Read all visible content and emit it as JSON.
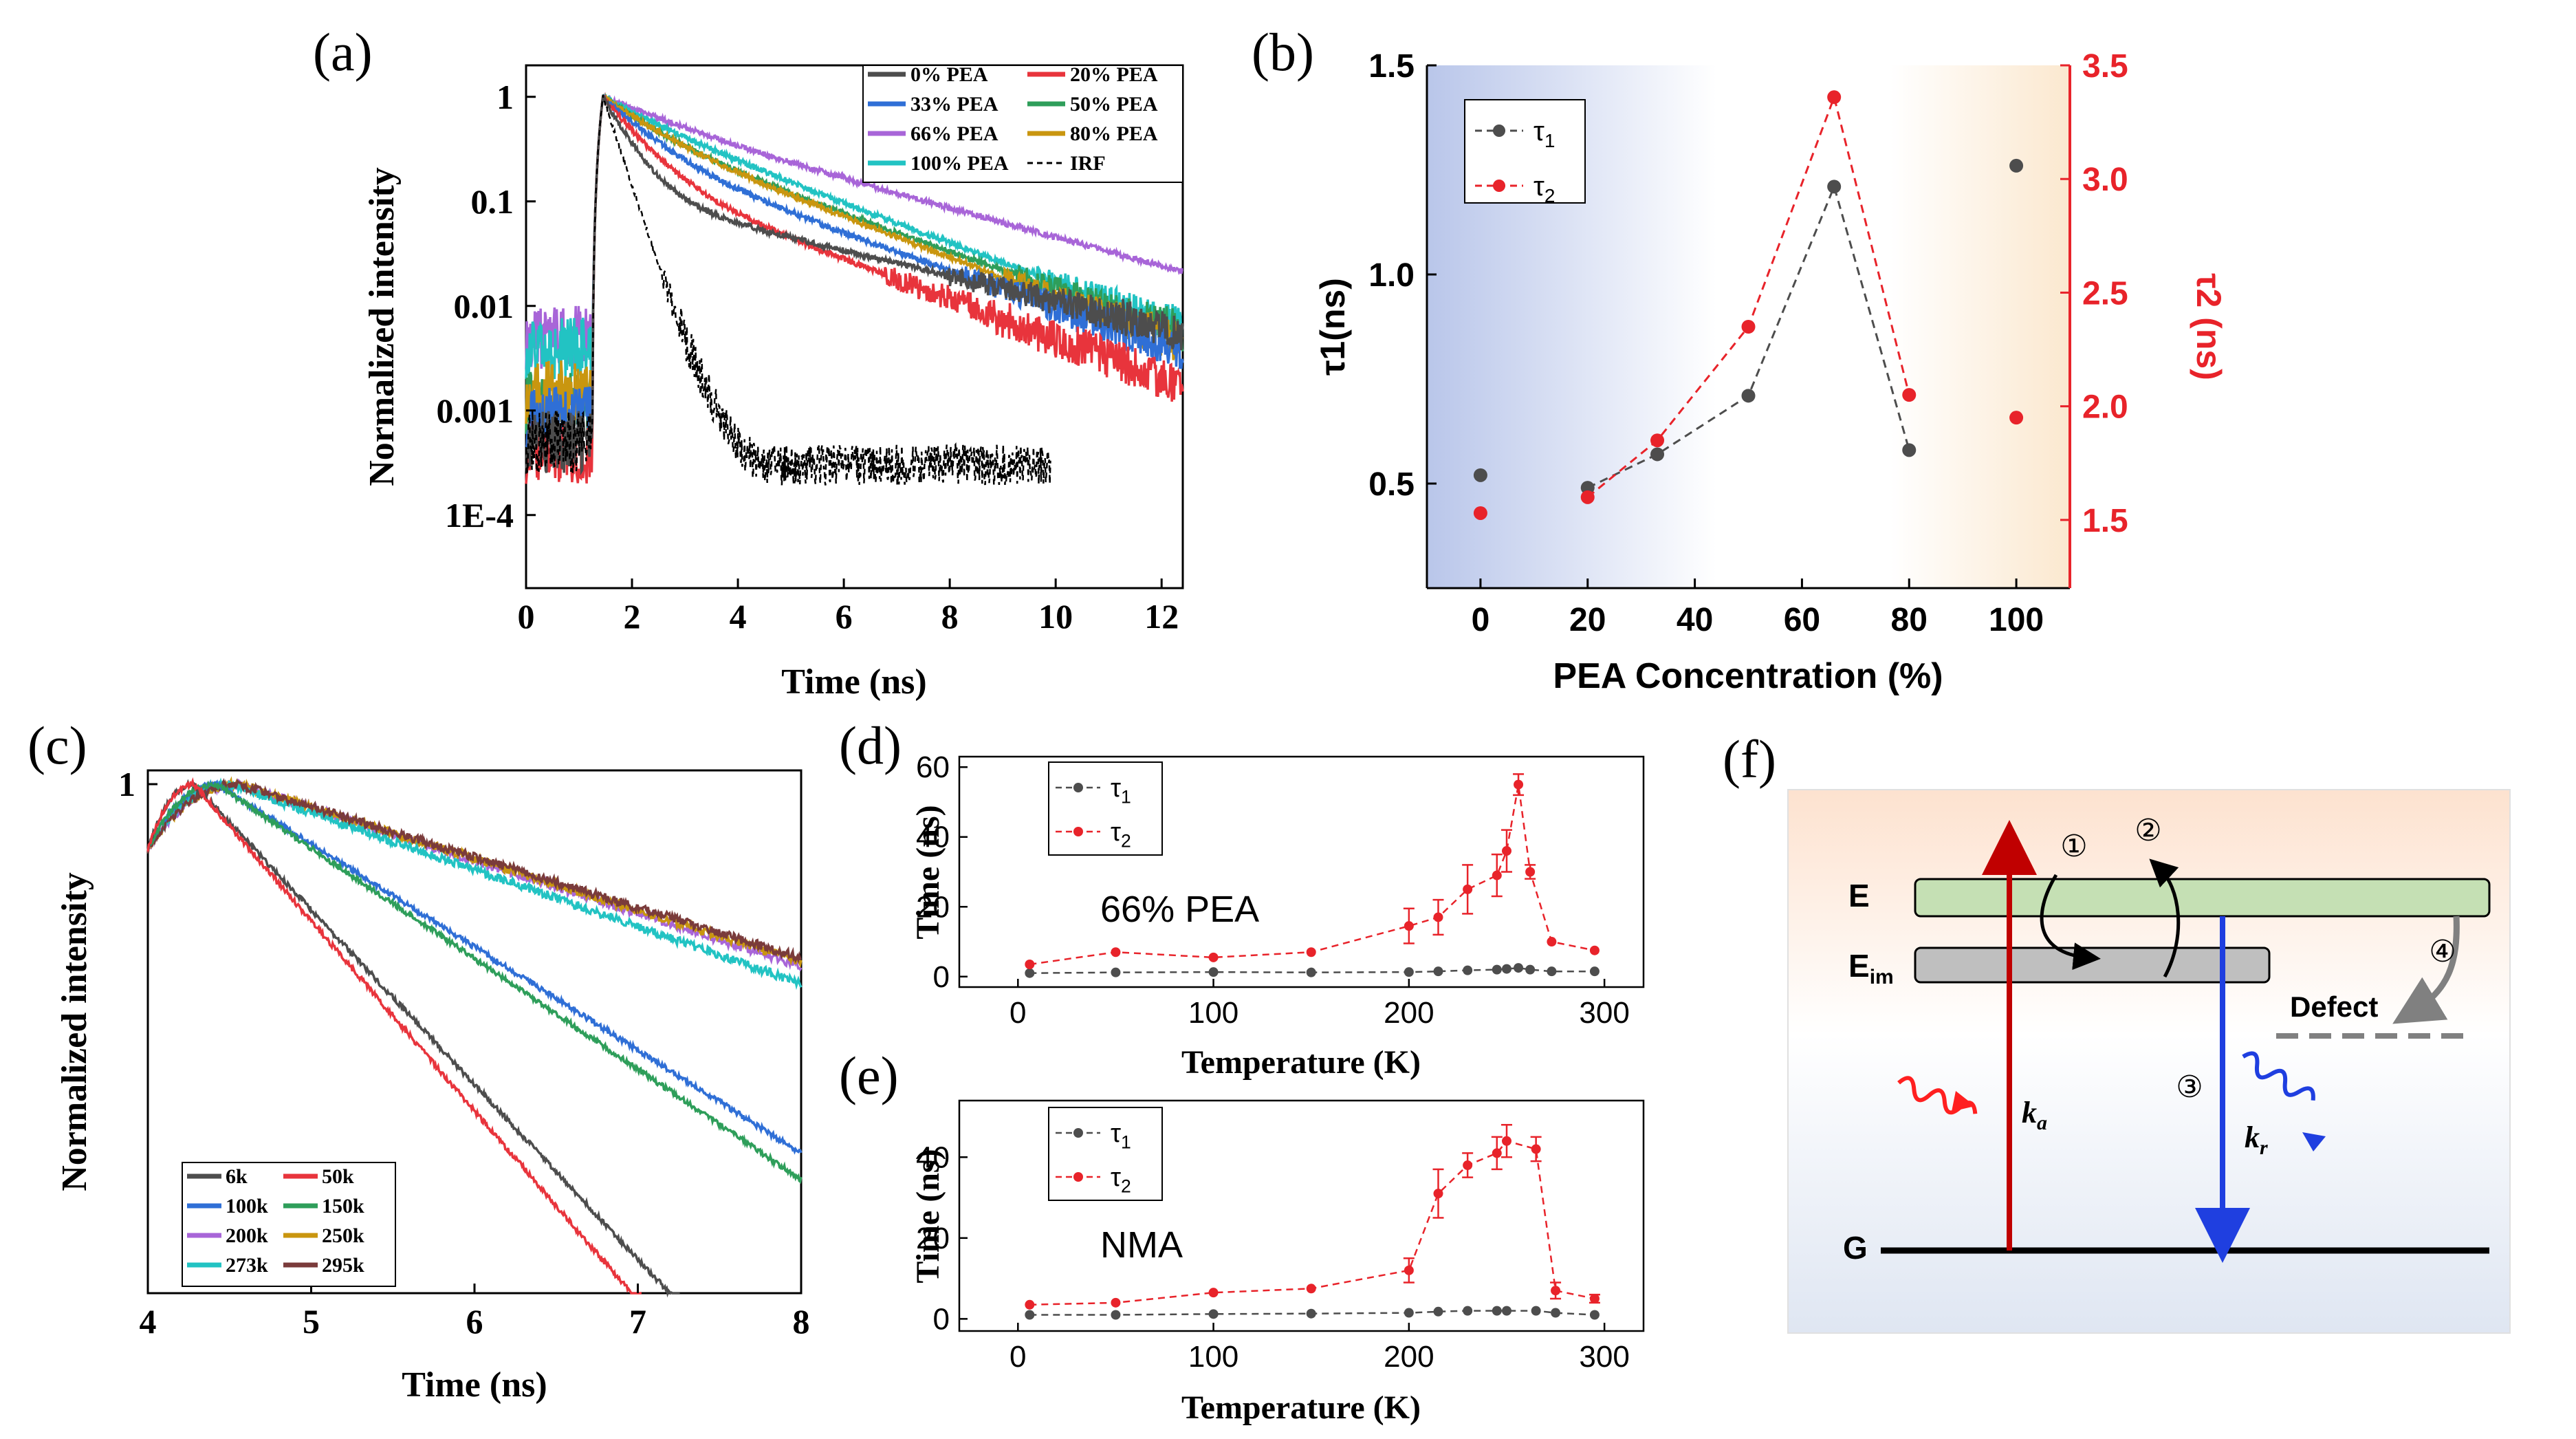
{
  "figure_panels": [
    "(a)",
    "(b)",
    "(c)",
    "(d)",
    "(e)",
    "(f)"
  ],
  "chart_data": [
    {
      "panel": "(a)",
      "type": "line",
      "title": "",
      "xlabel": "Time (ns)",
      "ylabel": "Normalized intensity",
      "yscale": "log",
      "xlim": [
        0,
        12.4
      ],
      "ylim": [
        2e-05,
        2
      ],
      "xticks": [
        0,
        2,
        4,
        6,
        8,
        10,
        12
      ],
      "yticks": [
        1,
        0.1,
        0.01,
        0.001,
        0.0001
      ],
      "ytick_labels": [
        "1",
        "0.1",
        "0.01",
        "0.001",
        "1E-4"
      ],
      "legend_position": "top-right",
      "series": [
        {
          "name": "0% PEA",
          "color": "#4d4d4d",
          "peak": 1.5,
          "baseline": 0.0005,
          "tau1": 0.45,
          "frac1": 0.88,
          "tau2": 3.6,
          "floor": 0.0002
        },
        {
          "name": "20% PEA",
          "color": "#e8343c",
          "peak": 1.5,
          "baseline": 0.0004,
          "tau1": 0.6,
          "frac1": 0.8,
          "tau2": 2.3,
          "floor": 0.0002
        },
        {
          "name": "33% PEA",
          "color": "#2f6fd6",
          "peak": 1.5,
          "baseline": 0.0009,
          "tau1": 0.75,
          "frac1": 0.7,
          "tau2": 2.5,
          "floor": 0.0004
        },
        {
          "name": "50% PEA",
          "color": "#2e9e5a",
          "peak": 1.5,
          "baseline": 0.0012,
          "tau1": 0.9,
          "frac1": 0.55,
          "tau2": 2.5,
          "floor": 0.0006
        },
        {
          "name": "66% PEA",
          "color": "#a865d8",
          "peak": 1.5,
          "baseline": 0.005,
          "tau1": 1.3,
          "frac1": 0.35,
          "tau2": 3.2,
          "floor": 0.001
        },
        {
          "name": "80% PEA",
          "color": "#c9960f",
          "peak": 1.5,
          "baseline": 0.0015,
          "tau1": 0.85,
          "frac1": 0.5,
          "tau2": 2.3,
          "floor": 0.0006
        },
        {
          "name": "100% PEA",
          "color": "#22c3c3",
          "peak": 1.5,
          "baseline": 0.004,
          "tau1": 1.1,
          "frac1": 0.4,
          "tau2": 2.4,
          "floor": 0.001
        },
        {
          "name": "IRF",
          "color": "#000000",
          "dashed": true,
          "peak": 1.5,
          "baseline": 0.0005,
          "tau1": 0.28,
          "frac1": 0.995,
          "tau2": 1.0,
          "floor": 0.0003,
          "xmax": 9.9
        }
      ]
    },
    {
      "panel": "(b)",
      "type": "scatter",
      "title": "",
      "xlabel": "PEA Concentration (%)",
      "ylabel": "τ1(ns)",
      "ylabel_right": "τ2 (ns)",
      "xlim": [
        -10,
        110
      ],
      "ylim": [
        0.25,
        1.5
      ],
      "ylim_right": [
        1.2,
        3.5
      ],
      "xticks": [
        0,
        20,
        40,
        60,
        80,
        100
      ],
      "yticks": [
        "0.5",
        "1.0",
        "1.5"
      ],
      "yticks_right": [
        "1.5",
        "2.0",
        "2.5",
        "3.0",
        "3.5"
      ],
      "legend_position": "top-left",
      "series": [
        {
          "name": "τ1",
          "axis": "left",
          "color": "#4d4d4d",
          "x": [
            0,
            20,
            33,
            50,
            66,
            80,
            100
          ],
          "y": [
            0.52,
            0.49,
            0.57,
            0.71,
            1.21,
            0.58,
            1.26
          ],
          "dashed_until_index": 5
        },
        {
          "name": "τ2",
          "axis": "right",
          "color": "#e8232a",
          "x": [
            0,
            20,
            33,
            50,
            66,
            80,
            100
          ],
          "y": [
            1.53,
            1.6,
            1.85,
            2.35,
            3.36,
            2.05,
            1.95
          ],
          "dashed_until_index": 5
        }
      ]
    },
    {
      "panel": "(c)",
      "type": "line",
      "title": "",
      "xlabel": "Time (ns)",
      "ylabel": "Normalized intensity",
      "yscale": "log",
      "xlim": [
        4,
        8
      ],
      "xticks": [
        4,
        5,
        6,
        7,
        8
      ],
      "yticks": [
        "1"
      ],
      "legend_position": "bottom-left",
      "series": [
        {
          "name": "6k",
          "color": "#4d4d4d",
          "peak_time": 4.28,
          "tau": 0.62,
          "endval": 0.012
        },
        {
          "name": "50k",
          "color": "#e8343c",
          "peak_time": 4.28,
          "tau": 0.57,
          "endval": 0.009
        },
        {
          "name": "100k",
          "color": "#2f6fd6",
          "peak_time": 4.42,
          "tau": 1.05,
          "endval": 0.075
        },
        {
          "name": "150k",
          "color": "#2e9e5a",
          "peak_time": 4.42,
          "tau": 0.98,
          "endval": 0.062
        },
        {
          "name": "200k",
          "color": "#a865d8",
          "peak_time": 4.55,
          "tau": 2.05,
          "endval": 0.2
        },
        {
          "name": "250k",
          "color": "#c9960f",
          "peak_time": 4.55,
          "tau": 2.1,
          "endval": 0.2
        },
        {
          "name": "273k",
          "color": "#22c3c3",
          "peak_time": 4.5,
          "tau": 1.9,
          "endval": 0.17
        },
        {
          "name": "295k",
          "color": "#7a3b3b",
          "peak_time": 4.55,
          "tau": 2.15,
          "endval": 0.21
        }
      ]
    },
    {
      "panel": "(d)",
      "type": "line",
      "title": "",
      "annotation": "66% PEA",
      "xlabel": "Temperature (K)",
      "ylabel": "Time (ns)",
      "xlim": [
        -30,
        320
      ],
      "ylim": [
        -3,
        63
      ],
      "xticks": [
        0,
        100,
        200,
        300
      ],
      "yticks": [
        0,
        20,
        40,
        60
      ],
      "legend_position": "top-left",
      "series": [
        {
          "name": "τ1",
          "color": "#4d4d4d",
          "x": [
            6,
            50,
            100,
            150,
            200,
            215,
            230,
            245,
            250,
            256,
            262,
            273,
            295
          ],
          "y": [
            1,
            1.2,
            1.3,
            1.2,
            1.3,
            1.5,
            1.8,
            2,
            2.2,
            2.5,
            2,
            1.5,
            1.5
          ],
          "err": [
            0,
            0,
            0,
            0,
            0,
            0,
            0,
            0,
            0,
            0,
            0,
            0,
            0
          ]
        },
        {
          "name": "τ2",
          "color": "#e8232a",
          "x": [
            6,
            50,
            100,
            150,
            200,
            215,
            230,
            245,
            250,
            256,
            262,
            273,
            295
          ],
          "y": [
            3.5,
            7,
            5.5,
            7,
            14.5,
            17,
            25,
            29,
            36,
            55,
            30,
            10,
            7.5
          ],
          "err": [
            0,
            0,
            0,
            0,
            5,
            5,
            7,
            6,
            6,
            3,
            2,
            0,
            0
          ]
        }
      ]
    },
    {
      "panel": "(e)",
      "type": "line",
      "title": "",
      "annotation": "NMA",
      "xlabel": "Temperature (K)",
      "ylabel": "Time (ns)",
      "xlim": [
        -30,
        320
      ],
      "ylim": [
        -3,
        54
      ],
      "xticks": [
        0,
        100,
        200,
        300
      ],
      "yticks": [
        0,
        20,
        40
      ],
      "legend_position": "top-left",
      "series": [
        {
          "name": "τ1",
          "color": "#4d4d4d",
          "x": [
            6,
            50,
            100,
            150,
            200,
            215,
            230,
            245,
            250,
            265,
            275,
            295
          ],
          "y": [
            1,
            1,
            1.2,
            1.3,
            1.5,
            1.8,
            2,
            2,
            2,
            2,
            1.5,
            1
          ],
          "err": [
            0,
            0,
            0,
            0,
            0,
            0,
            0,
            0,
            0,
            0,
            0,
            0
          ]
        },
        {
          "name": "τ2",
          "color": "#e8232a",
          "x": [
            6,
            50,
            100,
            150,
            200,
            215,
            230,
            245,
            250,
            265,
            275,
            295
          ],
          "y": [
            3.5,
            4,
            6.5,
            7.5,
            12,
            31,
            38,
            41,
            44,
            42,
            7,
            5
          ],
          "err": [
            0,
            0,
            0,
            0,
            3,
            6,
            3,
            4,
            4,
            3,
            2,
            1
          ]
        }
      ]
    }
  ],
  "diagram_f": {
    "label": "(f)",
    "level_e": "E",
    "level_eim": "E",
    "level_eim_sub": "im",
    "level_g": "G",
    "defect": "Defect",
    "ka": "k",
    "ka_sub": "a",
    "kr": "k",
    "kr_sub": "r",
    "steps": [
      "①",
      "②",
      "③",
      "④"
    ],
    "colors": {
      "excitation": "#c00000",
      "emission": "#1f3fe0",
      "level_e": "#c5e0b4",
      "level_eim": "#bfbfbf",
      "defect": "#808080",
      "bg_top": "#fde2cf",
      "bg_bottom": "#dfe6f2"
    }
  }
}
